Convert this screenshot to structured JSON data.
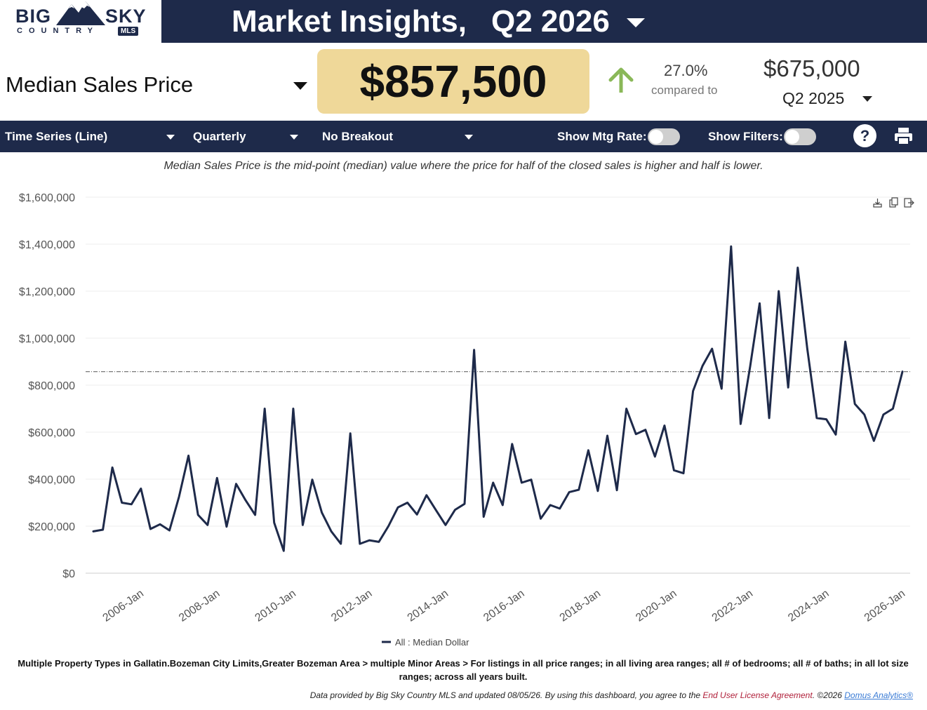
{
  "logo": {
    "big": "BIG",
    "sky": "SKY",
    "country": "COUNTRY",
    "mls": "MLS"
  },
  "header": {
    "title": "Market Insights,",
    "period": "Q2 2026"
  },
  "metric": {
    "label": "Median Sales Price",
    "value": "$857,500",
    "change_pct": "27.0%",
    "compared_to": "compared to",
    "compare_value": "$675,000",
    "compare_period": "Q2  2025"
  },
  "controls": {
    "chart_type": "Time Series (Line)",
    "interval": "Quarterly",
    "breakout": "No Breakout",
    "show_mtg_rate": "Show Mtg Rate:",
    "show_filters": "Show Filters:",
    "help": "?"
  },
  "description": "Median Sales Price is the mid-point (median) value where the price for half of the closed sales is higher and half is lower.",
  "footer": {
    "filters": "Multiple Property Types in Gallatin.Bozeman City Limits,Greater Bozeman Area > multiple Minor Areas > For listings in all price ranges; in all living area ranges; all # of bedrooms; all # of baths; in all lot size ranges; across all years built.",
    "provided_prefix": "Data provided by Big Sky Country MLS and updated 08/05/26.  By using this dashboard, you agree to the ",
    "eula": "End User License Agreement",
    "provided_mid": ".  ©2026 ",
    "domus": "Domus Analytics®"
  },
  "colors": {
    "navy": "#1e2a4a",
    "accent_box": "#efd899",
    "arrow": "#8ab858"
  },
  "chart_data": {
    "type": "line",
    "xlabel": "",
    "ylabel": "",
    "ylim": [
      0,
      1600000
    ],
    "y_ticks": [
      "$0",
      "$200,000",
      "$400,000",
      "$600,000",
      "$800,000",
      "$1,000,000",
      "$1,200,000",
      "$1,400,000",
      "$1,600,000"
    ],
    "x_tick_labels": [
      "2006-Jan",
      "2008-Jan",
      "2010-Jan",
      "2012-Jan",
      "2014-Jan",
      "2016-Jan",
      "2018-Jan",
      "2020-Jan",
      "2022-Jan",
      "2024-Jan",
      "2026-Jan"
    ],
    "x_start": "2005-Q1",
    "x_end": "2026-Q2",
    "reference_line": 857500,
    "legend": "All : Median Dollar",
    "series": [
      {
        "name": "All : Median Dollar",
        "values": [
          178000,
          185000,
          450000,
          300000,
          293000,
          360000,
          188000,
          208000,
          182000,
          325000,
          500000,
          248000,
          205000,
          405000,
          198000,
          380000,
          310000,
          248000,
          700000,
          215000,
          95000,
          700000,
          205000,
          398000,
          258000,
          178000,
          125000,
          595000,
          125000,
          140000,
          133000,
          200000,
          280000,
          300000,
          250000,
          332000,
          268000,
          205000,
          270000,
          295000,
          950000,
          240000,
          385000,
          290000,
          550000,
          385000,
          398000,
          232000,
          290000,
          275000,
          345000,
          355000,
          523000,
          350000,
          585000,
          353000,
          700000,
          592000,
          610000,
          496000,
          628000,
          438000,
          425000,
          775000,
          882000,
          955000,
          785000,
          1390000,
          635000,
          880000,
          1148000,
          660000,
          1200000,
          790000,
          1300000,
          955000,
          660000,
          655000,
          590000,
          985000,
          720000,
          675000,
          563000,
          675000,
          700000,
          857500
        ]
      }
    ]
  }
}
